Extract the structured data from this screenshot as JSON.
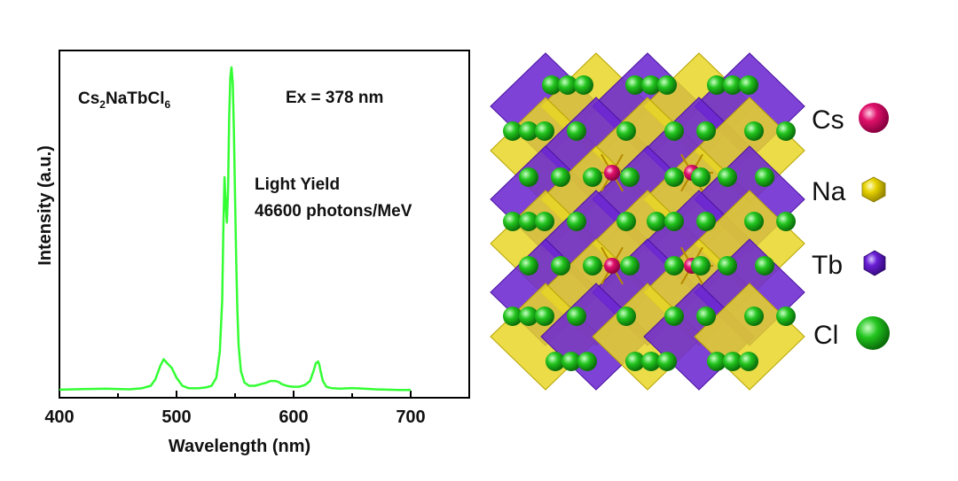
{
  "chart_data": {
    "type": "line",
    "title": "",
    "xlabel": "Wavelength (nm)",
    "ylabel": "Intensity (a.u.)",
    "xlim": [
      400,
      750
    ],
    "ylim": [
      0,
      1.0
    ],
    "x_ticks": [
      400,
      500,
      600,
      700
    ],
    "y_ticks_shown": false,
    "grid": false,
    "line_color": "#33ff33",
    "annotations": {
      "compound": {
        "base1": "Cs",
        "sub1": "2",
        "base2": "NaTbCl",
        "sub2": "6"
      },
      "excitation": "Ex = 378 nm",
      "light_yield_line1": "Light Yield",
      "light_yield_line2": "46600 photons/MeV"
    },
    "series": [
      {
        "x": [
          400,
          420,
          440,
          460,
          470,
          478,
          482,
          486,
          489,
          492,
          496,
          500,
          505,
          510,
          515,
          520,
          525,
          530,
          534,
          537,
          539,
          540,
          541,
          542,
          543,
          544,
          545,
          546,
          547,
          548,
          549,
          550,
          551,
          552,
          553,
          555,
          558,
          562,
          567,
          572,
          577,
          580,
          584,
          587,
          590,
          594,
          597,
          600,
          605,
          610,
          614,
          617,
          619,
          621,
          622,
          623,
          625,
          628,
          632,
          640,
          650,
          660,
          670,
          680,
          690,
          700
        ],
        "y": [
          0.003,
          0.005,
          0.006,
          0.004,
          0.007,
          0.015,
          0.035,
          0.075,
          0.097,
          0.085,
          0.07,
          0.04,
          0.015,
          0.008,
          0.007,
          0.008,
          0.01,
          0.015,
          0.04,
          0.12,
          0.28,
          0.5,
          0.66,
          0.58,
          0.52,
          0.62,
          0.85,
          0.97,
          1.0,
          0.95,
          0.8,
          0.6,
          0.4,
          0.25,
          0.14,
          0.06,
          0.025,
          0.015,
          0.015,
          0.02,
          0.025,
          0.03,
          0.03,
          0.027,
          0.02,
          0.015,
          0.013,
          0.012,
          0.012,
          0.018,
          0.03,
          0.06,
          0.085,
          0.09,
          0.08,
          0.06,
          0.03,
          0.012,
          0.008,
          0.006,
          0.008,
          0.006,
          0.004,
          0.003,
          0.002,
          0.002
        ]
      }
    ]
  },
  "structure_legend": [
    {
      "label": "Cs",
      "color": "#e0116b"
    },
    {
      "label": "Na",
      "color": "#e7d200"
    },
    {
      "label": "Tb",
      "color": "#6a1ed6"
    },
    {
      "label": "Cl",
      "color": "#22c41e"
    }
  ]
}
